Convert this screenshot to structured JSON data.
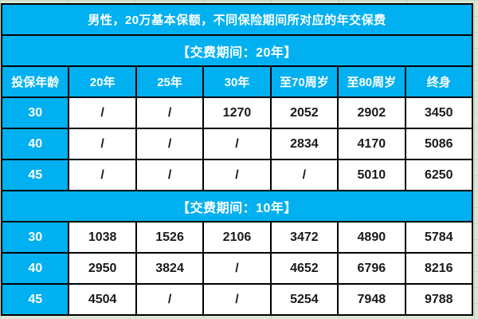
{
  "colors": {
    "accent": "#00b0f0",
    "sheet_background": "#dbe7d5",
    "grid_border": "#000000",
    "header_text": "#ffffff",
    "data_text": "#1a1a1a"
  },
  "table": {
    "title": "男性，20万基本保额，不同保险期间所对应的年交保费",
    "columns": [
      "投保年龄",
      "20年",
      "25年",
      "30年",
      "至70周岁",
      "至80周岁",
      "终身"
    ],
    "sections": [
      {
        "header": "【交费期间：20年】",
        "rows": [
          {
            "age": "30",
            "values": [
              "/",
              "/",
              "1270",
              "2052",
              "2902",
              "3450"
            ]
          },
          {
            "age": "40",
            "values": [
              "/",
              "/",
              "/",
              "2834",
              "4170",
              "5086"
            ]
          },
          {
            "age": "45",
            "values": [
              "/",
              "/",
              "/",
              "/",
              "5010",
              "6250"
            ]
          }
        ]
      },
      {
        "header": "【交费期间：10年】",
        "rows": [
          {
            "age": "30",
            "values": [
              "1038",
              "1526",
              "2106",
              "3472",
              "4890",
              "5784"
            ]
          },
          {
            "age": "40",
            "values": [
              "2950",
              "3824",
              "/",
              "4652",
              "6796",
              "8216"
            ]
          },
          {
            "age": "45",
            "values": [
              "4504",
              "/",
              "/",
              "5254",
              "7948",
              "9788"
            ]
          }
        ]
      }
    ]
  }
}
